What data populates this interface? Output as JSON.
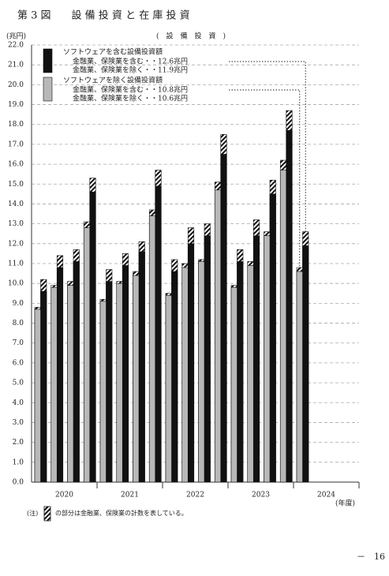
{
  "chart_data": {
    "type": "bar",
    "title": "第 3 図　　設 備 投 資 と 在 庫 投 資",
    "subtitle": "(　設　備　投　資　)",
    "ylabel": "(兆円)",
    "xlabel": "(年度)",
    "note_mark": "(注)",
    "note": "の部分は金融業、保険業の計数を表している。",
    "page_number": "－　16",
    "ylim": [
      0,
      22
    ],
    "yticks": [
      {
        "value": 0,
        "label": "0.0"
      },
      {
        "value": 1,
        "label": "1.0"
      },
      {
        "value": 2,
        "label": "2.0"
      },
      {
        "value": 3,
        "label": "3.0"
      },
      {
        "value": 4,
        "label": "4.0"
      },
      {
        "value": 5,
        "label": "5.0"
      },
      {
        "value": 6,
        "label": "6.0"
      },
      {
        "value": 7,
        "label": "7.0"
      },
      {
        "value": 8,
        "label": "8.0"
      },
      {
        "value": 9,
        "label": "9.0"
      },
      {
        "value": 10,
        "label": "10.0"
      },
      {
        "value": 11,
        "label": "11.0"
      },
      {
        "value": 12,
        "label": "12.0"
      },
      {
        "value": 13,
        "label": "13.0"
      },
      {
        "value": 14,
        "label": "14.0"
      },
      {
        "value": 15,
        "label": "15.0"
      },
      {
        "value": 16,
        "label": "16.0"
      },
      {
        "value": 17,
        "label": "17.0"
      },
      {
        "value": 18,
        "label": "18.0"
      },
      {
        "value": 19,
        "label": "19.0"
      },
      {
        "value": 20,
        "label": "20.0"
      },
      {
        "value": 21,
        "label": "21.0"
      },
      {
        "value": 22,
        "label": "22.0"
      }
    ],
    "grid": true,
    "categories": [
      "2020",
      "2021",
      "2022",
      "2023",
      "2024"
    ],
    "series_groups": [
      {
        "title": "ソフトウェアを含む設備投資額",
        "color": "#111111",
        "series": [
          {
            "name": "金融業、保険業を含む・・12.6兆円",
            "style": "hatch",
            "values": [
              [
                10.2,
                11.4,
                11.7,
                15.3
              ],
              [
                10.7,
                11.5,
                12.1,
                15.7
              ],
              [
                11.2,
                12.8,
                13.0,
                17.5
              ],
              [
                11.7,
                13.2,
                15.2,
                18.7
              ],
              [
                12.6
              ]
            ]
          },
          {
            "name": "金融業、保険業を除く・・11.9兆円",
            "style": "solid",
            "values": [
              [
                9.6,
                10.8,
                11.1,
                14.6
              ],
              [
                10.1,
                10.9,
                11.6,
                14.9
              ],
              [
                10.6,
                12.0,
                12.4,
                16.5
              ],
              [
                11.1,
                12.4,
                14.5,
                17.7
              ],
              [
                11.9
              ]
            ]
          }
        ]
      },
      {
        "title": "ソフトウェアを除く設備投資額",
        "color": "#b8b8b8",
        "series": [
          {
            "name": "金融業、保険業を含む・・10.8兆円",
            "style": "hatch",
            "values": [
              [
                8.8,
                9.9,
                10.1,
                13.1
              ],
              [
                9.2,
                10.1,
                10.6,
                13.7
              ],
              [
                9.5,
                11.0,
                11.2,
                15.1
              ],
              [
                9.9,
                11.1,
                12.6,
                16.2
              ],
              [
                10.8
              ]
            ]
          },
          {
            "name": "金融業、保険業を除く・・10.6兆円",
            "style": "solid",
            "values": [
              [
                8.7,
                9.8,
                9.9,
                12.8
              ],
              [
                9.1,
                10.0,
                10.4,
                13.4
              ],
              [
                9.4,
                10.8,
                11.1,
                14.7
              ],
              [
                9.8,
                10.9,
                12.4,
                15.7
              ],
              [
                10.6
              ]
            ]
          }
        ]
      }
    ]
  }
}
